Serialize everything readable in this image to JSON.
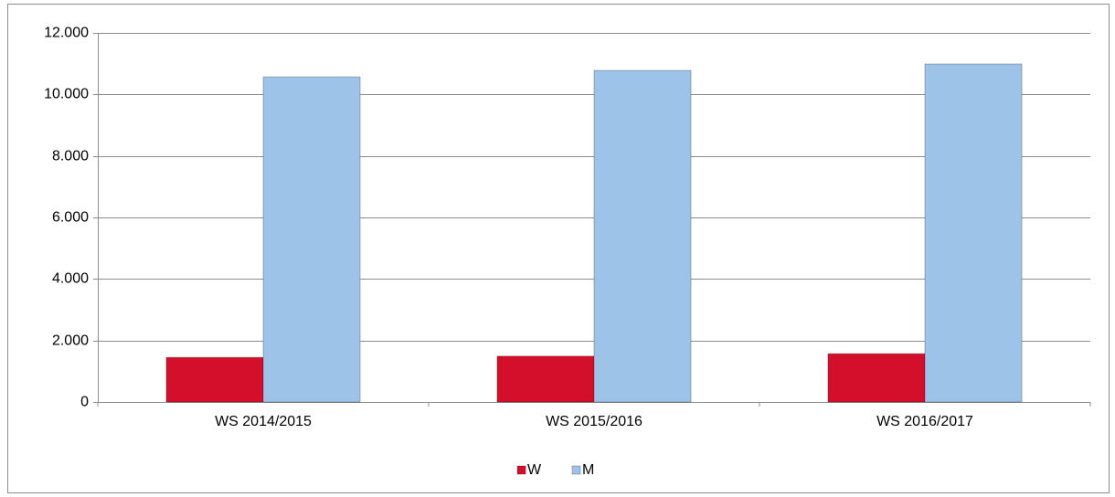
{
  "chart_data": {
    "type": "bar",
    "categories": [
      "WS 2014/2015",
      "WS 2015/2016",
      "WS 2016/2017"
    ],
    "series": [
      {
        "name": "W",
        "color": "#d40f2b",
        "values": [
          1450,
          1490,
          1570
        ]
      },
      {
        "name": "M",
        "color": "#9dc3e8",
        "values": [
          10570,
          10780,
          10990
        ]
      }
    ],
    "ylim": [
      0,
      12000
    ],
    "yticks": [
      0,
      {
        "value": 2000,
        "label": "2.000"
      },
      {
        "value": 4000,
        "label": "4.000"
      },
      {
        "value": 6000,
        "label": "6.000"
      },
      {
        "value": 8000,
        "label": "8.000"
      },
      {
        "value": 10000,
        "label": "10.000"
      },
      {
        "value": 12000,
        "label": "12.000"
      }
    ],
    "grid": true,
    "legend": "bottom"
  }
}
